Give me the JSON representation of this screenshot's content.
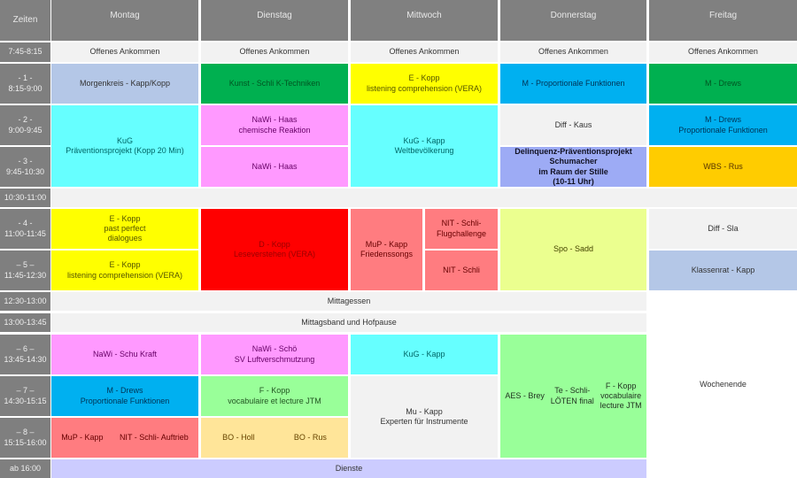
{
  "header": {
    "time": "Zeiten",
    "days": [
      "Montag",
      "Dienstag",
      "Mittwoch",
      "Donnerstag",
      "Freitag"
    ]
  },
  "times": [
    "7:45-8:15",
    "- 1 -\n8:15-9:00",
    "- 2 -\n9:00-9:45",
    "- 3 -\n9:45-10:30",
    "10:30-11:00",
    "- 4 -\n11:00-11:45",
    "– 5 –\n11:45-12:30",
    "12:30-13:00",
    "13:00-13:45",
    "– 6 –\n13:45-14:30",
    "– 7 –\n14:30-15:15",
    "– 8 –\n15:15-16:00",
    "ab 16:00"
  ],
  "arrival": "Offenes Ankommen",
  "mon": {
    "p1": "Morgenkreis - Kapp/Kopp",
    "p23": "KuG\nPräventionsprojekt (Kopp 20 Min)",
    "p4": "E - Kopp\npast perfect\ndialogues",
    "p5": "E - Kopp\nlistening comprehension (VERA)",
    "p6": "NaWi - Schu Kraft",
    "p7": "M  - Drews\nProportionale Funktionen",
    "p8a": "MuP - Kapp",
    "p8b": "NIT - Schli- Auftrieb"
  },
  "tue": {
    "p1": "Kunst - Schli K-Techniken",
    "p2": "NaWi - Haas\nchemische Reaktion",
    "p3": "NaWi - Haas",
    "p45": "D - Kopp\nLeseverstehen (VERA)",
    "p6": "NaWi - Schö\nSV Luftverschmutzung",
    "p7": "F - Kopp\nvocabulaire et lecture JTM",
    "p8a": "BO - Holl",
    "p8b": "BO - Rus"
  },
  "wed": {
    "p1": "E - Kopp\nlistening comprehension (VERA)",
    "p23": "KuG - Kapp\nWeltbevölkerung",
    "p45a": "MuP - Kapp\nFriedenssongs",
    "p4b": "NIT - Schli-\nFlugchallenge",
    "p5b": "NIT - Schli",
    "p6": "KuG - Kapp",
    "p78": "Mu - Kapp\nExperten für Instrumente"
  },
  "thu": {
    "p1": "M - Proportionale Funktionen",
    "p2": "Diff - Kaus",
    "p3": "Delinquenz-Präventionsprojekt\nSchumacher\nim Raum der Stille\n(10-11 Uhr)",
    "p45": "Spo - Sadd",
    "p68a": "AES - Brey",
    "p68b": "Te - Schli-\nLÖTEN final",
    "p68c": "F - Kopp\nvocabulaire\nlecture JTM"
  },
  "fri": {
    "p1": "M - Drews",
    "p2": "M  - Drews\nProportionale Funktionen",
    "p3": "WBS - Rus",
    "p4": "Diff - Sla",
    "p5": "Klassenrat - Kapp",
    "weekend": "Wochenende"
  },
  "breaks": {
    "lunch": "Mittagessen",
    "band": "Mittagsband und Hofpause",
    "duties": "Dienste"
  }
}
